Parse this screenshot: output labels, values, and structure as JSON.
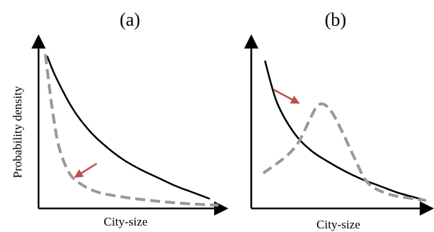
{
  "chart_data": [
    {
      "type": "line",
      "panel_label": "(a)",
      "xlabel": "City-size",
      "ylabel": "Probability density",
      "ticks": false,
      "grid": false,
      "series": [
        {
          "style": "solid",
          "color": "#000000",
          "x": [
            0.05,
            0.1,
            0.2,
            0.3,
            0.4,
            0.5,
            0.6,
            0.7,
            0.8,
            0.9,
            1.0
          ],
          "y": [
            0.95,
            0.82,
            0.62,
            0.48,
            0.38,
            0.3,
            0.24,
            0.19,
            0.14,
            0.1,
            0.06
          ]
        },
        {
          "style": "dashed",
          "color": "#999999",
          "x": [
            0.04,
            0.08,
            0.12,
            0.18,
            0.25,
            0.35,
            0.5,
            0.65,
            0.8,
            0.95,
            1.05
          ],
          "y": [
            0.96,
            0.62,
            0.38,
            0.22,
            0.15,
            0.1,
            0.07,
            0.05,
            0.035,
            0.025,
            0.02
          ]
        }
      ],
      "annotations": [
        {
          "type": "arrow",
          "color": "#c0504d",
          "from": [
            0.34,
            0.28
          ],
          "to": [
            0.22,
            0.2
          ]
        }
      ]
    },
    {
      "type": "line",
      "panel_label": "(b)",
      "xlabel": "City-size",
      "ylabel": "",
      "ticks": false,
      "grid": false,
      "series": [
        {
          "style": "solid",
          "color": "#000000",
          "x": [
            0.08,
            0.15,
            0.25,
            0.35,
            0.45,
            0.55,
            0.65,
            0.75,
            0.85,
            0.95,
            1.02
          ],
          "y": [
            0.92,
            0.66,
            0.47,
            0.36,
            0.29,
            0.23,
            0.18,
            0.14,
            0.1,
            0.07,
            0.05
          ]
        },
        {
          "style": "dashed",
          "color": "#999999",
          "x": [
            0.07,
            0.15,
            0.22,
            0.28,
            0.34,
            0.38,
            0.42,
            0.47,
            0.53,
            0.6,
            0.68,
            0.8,
            0.95,
            1.02
          ],
          "y": [
            0.22,
            0.28,
            0.34,
            0.42,
            0.55,
            0.63,
            0.65,
            0.6,
            0.48,
            0.32,
            0.16,
            0.09,
            0.06,
            0.05
          ]
        }
      ],
      "annotations": [
        {
          "type": "arrow",
          "color": "#c0504d",
          "from": [
            0.13,
            0.74
          ],
          "to": [
            0.27,
            0.66
          ]
        }
      ]
    }
  ]
}
